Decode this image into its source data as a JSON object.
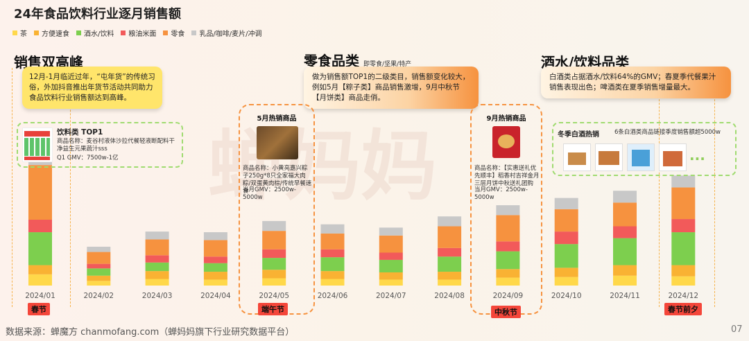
{
  "title": "24年食品饮料行业逐月销售额",
  "legend": [
    {
      "name": "茶",
      "color": "#ffd84a"
    },
    {
      "name": "方便速食",
      "color": "#f9b233"
    },
    {
      "name": "酒水/饮料",
      "color": "#7dcf4e"
    },
    {
      "name": "粮油米面",
      "color": "#f25a5a"
    },
    {
      "name": "零食",
      "color": "#f6923f"
    },
    {
      "name": "乳品/咖啡/麦片/冲调",
      "color": "#c8c8c8"
    }
  ],
  "watermark": "蝉妈妈",
  "section1": {
    "title": "销售双高峰",
    "callout": "12月-1月临近过年，“屯年货”的传统习俗，外加抖音推出年货节活动共同助力食品饮料行业销售额达到高峰。",
    "card_title": "饮料类 TOP1",
    "card_name": "商品名称：麦谷村液体沙拉代餐轻液断配料干净益生元果蔬汁sss",
    "card_gmv": "Q1 GMV：7500w-1亿"
  },
  "section2": {
    "title": "零食品类",
    "subtitle": "即零食/坚果/特产",
    "callout": "做为销售额TOP1的二级类目，销售额变化较大，例如5月【粽子类】商品销售激增，9月中秋节【月饼类】商品走俏。"
  },
  "section3": {
    "title": "酒水/饮料品类",
    "callout": "白酒类占据酒水/饮料64%的GMV；春夏季代餐果汁销售表现出色；啤酒类在夏季销售增量最大。",
    "card_title": "冬季白酒热销",
    "card_note": "6条白酒类商品链接季度销售额超5000w",
    "ellipsis": "..."
  },
  "may_card": {
    "title": "5月热销商品",
    "name": "商品名称：小黄亮嘉兴粽子250g*8只全家福大肉粽/双蛋黄肉棕/传统早餐速食",
    "gmv": "当月GMV：2500w-5000w"
  },
  "sep_card": {
    "title": "9月热销商品",
    "name": "商品名称：【实惠送礼优先顺丰】稻香村吉祥金月三层月饼中秋送礼团购",
    "gmv": "当月GMV：2500w-5000w"
  },
  "tags": {
    "jan": "春节",
    "may": "端午节",
    "sep": "中秋节",
    "dec": "春节前夕"
  },
  "source": "数据来源：蝉魔方 chanmofang.com（蝉妈妈旗下行业研究数据平台）",
  "page_number": "07",
  "chart_data": {
    "type": "bar",
    "stacked": true,
    "categories": [
      "2024/01",
      "2024/02",
      "2024/03",
      "2024/04",
      "2024/05",
      "2024/06",
      "2024/07",
      "2024/08",
      "2024/09",
      "2024/10",
      "2024/11",
      "2024/12"
    ],
    "series": [
      {
        "name": "茶",
        "color": "#ffd84a",
        "values": [
          17,
          7,
          10,
          9,
          11,
          10,
          9,
          9,
          12,
          13,
          15,
          14
        ]
      },
      {
        "name": "方便速食",
        "color": "#f9b233",
        "values": [
          14,
          8,
          12,
          12,
          13,
          12,
          11,
          12,
          13,
          14,
          16,
          17
        ]
      },
      {
        "name": "酒水/饮料",
        "color": "#7dcf4e",
        "values": [
          50,
          11,
          13,
          13,
          18,
          21,
          19,
          23,
          27,
          36,
          41,
          50
        ]
      },
      {
        "name": "粮油米面",
        "color": "#f25a5a",
        "values": [
          19,
          7,
          11,
          10,
          13,
          12,
          11,
          13,
          15,
          19,
          18,
          20
        ]
      },
      {
        "name": "零食",
        "color": "#f6923f",
        "values": [
          83,
          18,
          24,
          25,
          28,
          24,
          26,
          33,
          40,
          34,
          36,
          48
        ]
      },
      {
        "name": "乳品/咖啡/麦片/冲调",
        "color": "#c8c8c8",
        "values": [
          13,
          8,
          12,
          12,
          15,
          14,
          12,
          15,
          15,
          17,
          18,
          18
        ]
      }
    ],
    "y_axis_shown": false,
    "ylim": [
      0,
      200
    ]
  }
}
